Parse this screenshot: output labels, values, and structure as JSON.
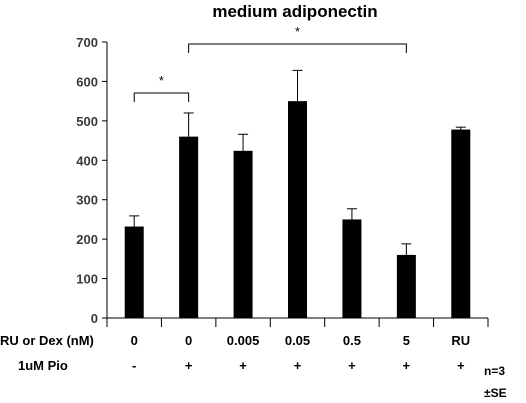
{
  "chart_data": {
    "type": "bar",
    "title": "medium adiponectin",
    "ylim": [
      0,
      700
    ],
    "yticks": [
      0,
      100,
      200,
      300,
      400,
      500,
      600,
      700
    ],
    "categories": [
      "0",
      "0",
      "0.005",
      "0.05",
      "0.5",
      "5",
      "RU"
    ],
    "values": [
      232,
      460,
      424,
      550,
      250,
      160,
      478
    ],
    "errors": [
      27,
      60,
      42,
      78,
      27,
      28,
      6
    ],
    "bar_color": "#000000",
    "row_labels": [
      "RU or Dex (nM)",
      "1uM Pio"
    ],
    "pio_row": [
      "-",
      "+",
      "+",
      "+",
      "+",
      "+",
      "+"
    ],
    "significance": [
      {
        "from": 0,
        "to": 1,
        "label": "*"
      },
      {
        "from": 1,
        "to": 5,
        "label": "*"
      }
    ],
    "notes": [
      "n=3",
      "±SE"
    ]
  }
}
